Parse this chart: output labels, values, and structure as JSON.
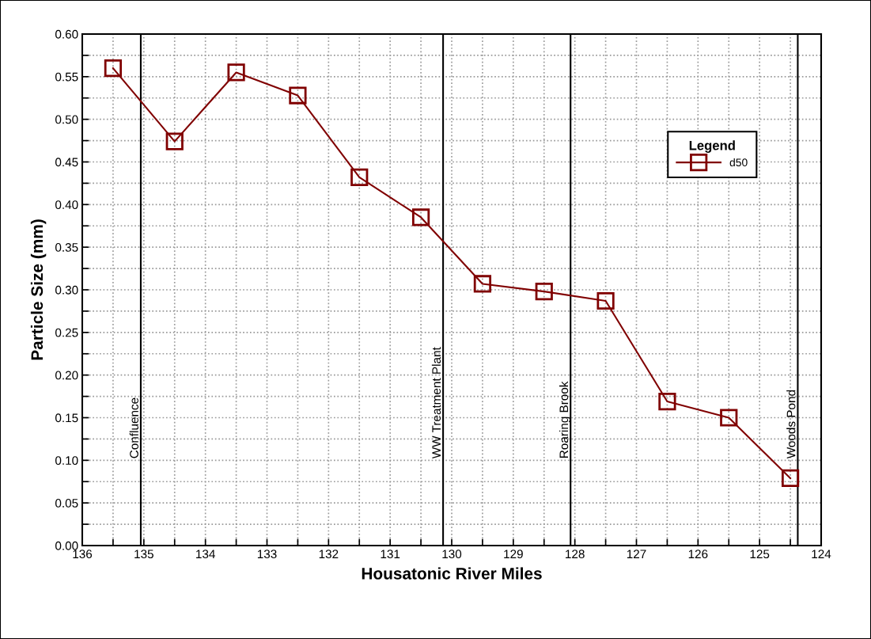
{
  "chart_data": {
    "type": "line",
    "xlabel": "Housatonic River Miles",
    "ylabel": "Particle Size (mm)",
    "legend_title": "Legend",
    "x": [
      135.5,
      134.5,
      133.5,
      132.5,
      131.5,
      130.5,
      129.5,
      128.5,
      127.5,
      126.5,
      125.5,
      124.5
    ],
    "series": [
      {
        "name": "d50",
        "color": "#800000",
        "values": [
          0.56,
          0.474,
          0.555,
          0.528,
          0.432,
          0.385,
          0.307,
          0.298,
          0.287,
          0.169,
          0.15,
          0.079
        ]
      }
    ],
    "xlim": [
      136,
      124
    ],
    "xticks": [
      136,
      {
        "value": 135.5,
        "label": null
      },
      135,
      {
        "value": 134.5,
        "label": null
      },
      134,
      {
        "value": 133.5,
        "label": null
      },
      133,
      {
        "value": 132.5,
        "label": null
      },
      132,
      {
        "value": 131.5,
        "label": null
      },
      131,
      {
        "value": 130.5,
        "label": null
      },
      130,
      {
        "value": 129.5,
        "label": null
      },
      129,
      {
        "value": 128.5,
        "label": null
      },
      128,
      {
        "value": 127.5,
        "label": null
      },
      127,
      {
        "value": 126.5,
        "label": null
      },
      126,
      {
        "value": 125.5,
        "label": null
      },
      125,
      {
        "value": 124.5,
        "label": null
      },
      124
    ],
    "ylim": [
      0,
      0.6
    ],
    "yticks": [
      {
        "value": 0,
        "label": "0.00"
      },
      {
        "value": 0.025,
        "label": null
      },
      {
        "value": 0.05,
        "label": "0.05"
      },
      {
        "value": 0.075,
        "label": null
      },
      {
        "value": 0.1,
        "label": "0.10"
      },
      {
        "value": 0.125,
        "label": null
      },
      {
        "value": 0.15,
        "label": "0.15"
      },
      {
        "value": 0.175,
        "label": null
      },
      {
        "value": 0.2,
        "label": "0.20"
      },
      {
        "value": 0.225,
        "label": null
      },
      {
        "value": 0.25,
        "label": "0.25"
      },
      {
        "value": 0.275,
        "label": null
      },
      {
        "value": 0.3,
        "label": "0.30"
      },
      {
        "value": 0.325,
        "label": null
      },
      {
        "value": 0.35,
        "label": "0.35"
      },
      {
        "value": 0.375,
        "label": null
      },
      {
        "value": 0.4,
        "label": "0.40"
      },
      {
        "value": 0.425,
        "label": null
      },
      {
        "value": 0.45,
        "label": "0.45"
      },
      {
        "value": 0.475,
        "label": null
      },
      {
        "value": 0.5,
        "label": "0.50"
      },
      {
        "value": 0.525,
        "label": null
      },
      {
        "value": 0.55,
        "label": "0.55"
      },
      {
        "value": 0.575,
        "label": null
      },
      {
        "value": 0.6,
        "label": "0.60"
      }
    ],
    "ref_lines": [
      {
        "axis": "x",
        "value": 135.05,
        "label": "Confluence",
        "color": "#000000"
      },
      {
        "axis": "x",
        "value": 130.14,
        "label": "WW Treatment Plant",
        "color": "#000000"
      },
      {
        "axis": "x",
        "value": 128.07,
        "label": "Roaring Brook",
        "color": "#000000"
      },
      {
        "axis": "x",
        "value": 124.38,
        "label": "Woods Pond",
        "color": "#000000"
      }
    ],
    "grid": true,
    "legend": "top right",
    "marker": "square",
    "line_style": "solid"
  }
}
